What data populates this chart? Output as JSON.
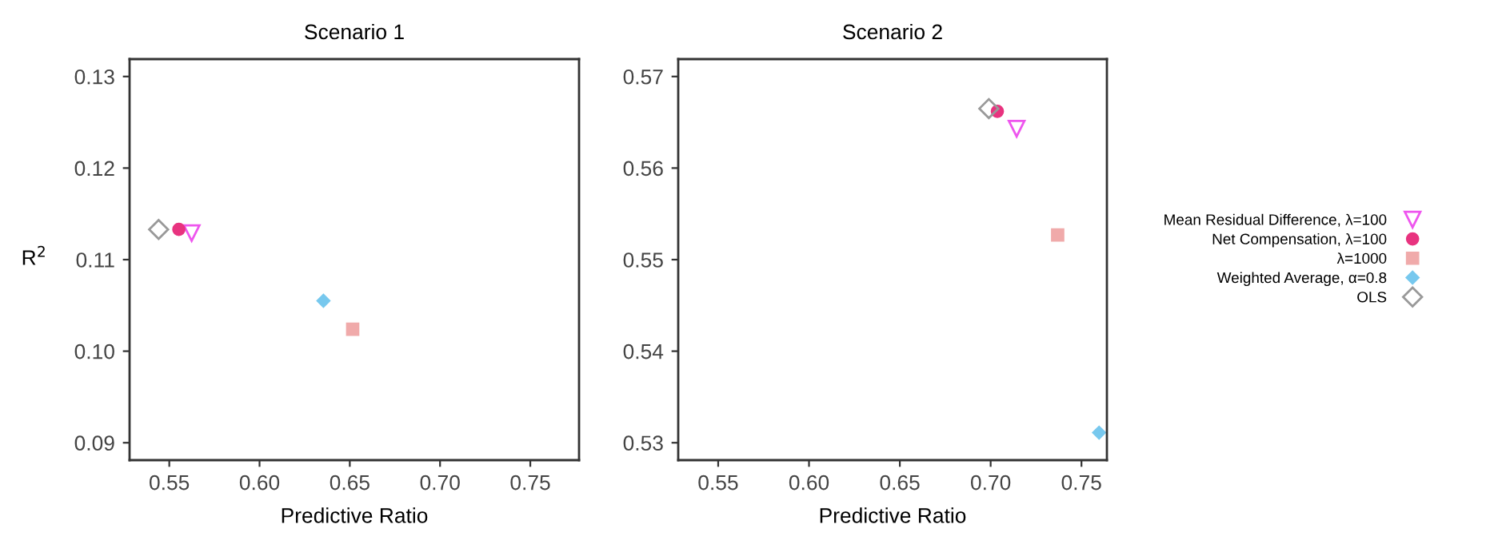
{
  "chart_data": [
    {
      "type": "scatter",
      "title": "Scenario 1",
      "xlabel": "Predictive Ratio",
      "ylabel": "R$^{2}$",
      "xlim": [
        0.528,
        0.777
      ],
      "ylim": [
        0.0881,
        0.1319
      ],
      "xticks": [
        {
          "value": 0.55,
          "label": "0.55"
        },
        {
          "value": 0.6,
          "label": "0.60"
        },
        {
          "value": 0.65,
          "label": "0.65"
        },
        {
          "value": 0.7,
          "label": "0.70"
        },
        {
          "value": 0.75,
          "label": "0.75"
        }
      ],
      "yticks": [
        {
          "value": 0.09,
          "label": "0.09"
        },
        {
          "value": 0.1,
          "label": "0.10"
        },
        {
          "value": 0.11,
          "label": "0.11"
        },
        {
          "value": 0.12,
          "label": "0.12"
        },
        {
          "value": 0.13,
          "label": "0.13"
        }
      ],
      "grid": false,
      "series": [
        {
          "color": "#ee55ee",
          "marker": "triangle",
          "x": [
            0.5624
          ],
          "values": [
            0.1129
          ]
        },
        {
          "color": "#e8337f",
          "marker": "circle",
          "x": [
            0.5553
          ],
          "values": [
            0.1133
          ]
        },
        {
          "color": "#f0aaaa",
          "marker": "square",
          "x": [
            0.6516
          ],
          "values": [
            0.1024
          ]
        },
        {
          "color": "#77c8ee",
          "marker": "diamond",
          "x": [
            0.6354
          ],
          "values": [
            0.1055
          ]
        },
        {
          "color": "#999999",
          "marker": "diamond",
          "x": [
            0.5441
          ],
          "values": [
            0.1133
          ]
        }
      ]
    },
    {
      "type": "scatter",
      "title": "Scenario 2",
      "xlabel": "Predictive Ratio",
      "xlim": [
        0.528,
        0.764
      ],
      "ylim": [
        0.5281,
        0.5719
      ],
      "xticks": [
        {
          "value": 0.55,
          "label": "0.55"
        },
        {
          "value": 0.6,
          "label": "0.60"
        },
        {
          "value": 0.65,
          "label": "0.65"
        },
        {
          "value": 0.7,
          "label": "0.70"
        },
        {
          "value": 0.75,
          "label": "0.75"
        }
      ],
      "yticks": [
        0.53,
        0.54,
        0.55,
        0.56,
        0.57
      ],
      "grid": false,
      "legend": "right",
      "series": [
        {
          "name": "Mean Residual Difference, λ=100",
          "color": "#ee55ee",
          "marker": "triangle",
          "x": [
            0.7143
          ],
          "values": [
            0.5643
          ]
        },
        {
          "name": "Net Compensation, λ=100",
          "color": "#e8337f",
          "marker": "circle",
          "x": [
            0.7037
          ],
          "values": [
            0.5662
          ]
        },
        {
          "name": "λ=1000",
          "color": "#f0aaaa",
          "marker": "square",
          "x": [
            0.7369
          ],
          "values": [
            0.5527
          ]
        },
        {
          "name": "Weighted Average, α=0.8",
          "color": "#77c8ee",
          "marker": "diamond",
          "x": [
            0.7597
          ],
          "values": [
            0.5311
          ]
        },
        {
          "name": "OLS",
          "color": "#999999",
          "marker": "diamond",
          "x": [
            0.699
          ],
          "values": [
            0.5665
          ]
        }
      ]
    }
  ]
}
